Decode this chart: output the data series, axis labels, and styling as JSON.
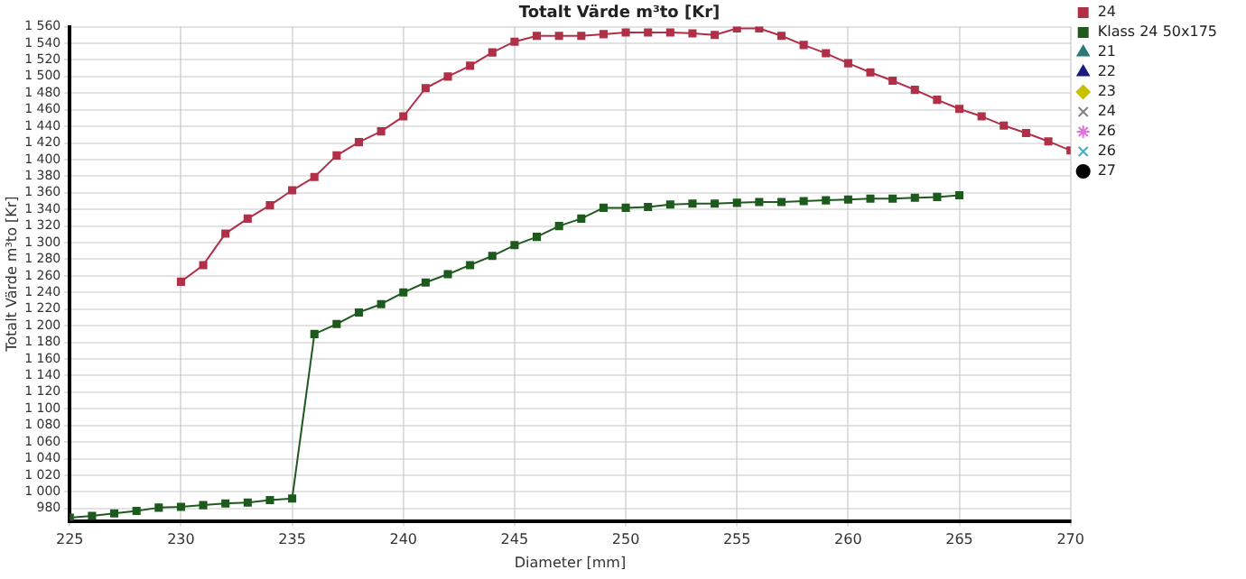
{
  "chart_data": {
    "type": "line",
    "title": "Totalt Värde m³to [Kr]",
    "xlabel": "Diameter [mm]",
    "ylabel": "Totalt Värde m³to [Kr]",
    "xlim": [
      225,
      270
    ],
    "xticks": [
      225,
      230,
      235,
      240,
      245,
      250,
      255,
      260,
      265,
      270
    ],
    "ylim": [
      965,
      1560
    ],
    "yticks": [
      980,
      {
        "value": 1000,
        "label": "1 000"
      },
      {
        "value": 1020,
        "label": "1 020"
      },
      {
        "value": 1040,
        "label": "1 040"
      },
      {
        "value": 1060,
        "label": "1 060"
      },
      {
        "value": 1080,
        "label": "1 080"
      },
      {
        "value": 1100,
        "label": "1 100"
      },
      {
        "value": 1120,
        "label": "1 120"
      },
      {
        "value": 1140,
        "label": "1 140"
      },
      {
        "value": 1160,
        "label": "1 160"
      },
      {
        "value": 1180,
        "label": "1 180"
      },
      {
        "value": 1200,
        "label": "1 200"
      },
      {
        "value": 1220,
        "label": "1 220"
      },
      {
        "value": 1240,
        "label": "1 240"
      },
      {
        "value": 1260,
        "label": "1 260"
      },
      {
        "value": 1280,
        "label": "1 280"
      },
      {
        "value": 1300,
        "label": "1 300"
      },
      {
        "value": 1320,
        "label": "1 320"
      },
      {
        "value": 1340,
        "label": "1 340"
      },
      {
        "value": 1360,
        "label": "1 360"
      },
      {
        "value": 1380,
        "label": "1 380"
      },
      {
        "value": 1400,
        "label": "1 400"
      },
      {
        "value": 1420,
        "label": "1 420"
      },
      {
        "value": 1440,
        "label": "1 440"
      },
      {
        "value": 1460,
        "label": "1 460"
      },
      {
        "value": 1480,
        "label": "1 480"
      },
      {
        "value": 1500,
        "label": "1 500"
      },
      {
        "value": 1520,
        "label": "1 520"
      },
      {
        "value": 1540,
        "label": "1 540"
      },
      {
        "value": 1560,
        "label": "1 560"
      }
    ],
    "grid": true,
    "legend": "right",
    "line_style": "solid",
    "series": [
      {
        "name": "24",
        "color": "#b03048",
        "marker": "square",
        "x": [
          230,
          231,
          232,
          233,
          234,
          235,
          236,
          237,
          238,
          239,
          240,
          241,
          242,
          243,
          244,
          245,
          246,
          247,
          248,
          249,
          250,
          251,
          252,
          253,
          254,
          255,
          256,
          257,
          258,
          259,
          260,
          261,
          262,
          263,
          264,
          265,
          266,
          267,
          268,
          269,
          270
        ],
        "values": [
          1253,
          1273,
          1311,
          1329,
          1345,
          1363,
          1379,
          1405,
          1421,
          1434,
          1452,
          1486,
          1500,
          1513,
          1529,
          1542,
          1549,
          1549,
          1549,
          1551,
          1553,
          1553,
          1553,
          1552,
          1550,
          1558,
          1558,
          1549,
          1538,
          1528,
          1516,
          1505,
          1495,
          1484,
          1472,
          1461,
          1452,
          1441,
          1432,
          1422,
          1411
        ]
      },
      {
        "name": "Klass 24 50x175",
        "color": "#1e5a1e",
        "marker": "square",
        "x": [
          225,
          226,
          227,
          228,
          229,
          230,
          231,
          232,
          233,
          234,
          235,
          236,
          237,
          238,
          239,
          240,
          241,
          242,
          243,
          244,
          245,
          246,
          247,
          248,
          249,
          250,
          251,
          252,
          253,
          254,
          255,
          256,
          257,
          258,
          259,
          260,
          261,
          262,
          263,
          264,
          265
        ],
        "values": [
          969,
          971,
          974,
          977,
          981,
          982,
          984,
          986,
          987,
          990,
          992,
          1190,
          1202,
          1216,
          1226,
          1240,
          1252,
          1262,
          1273,
          1284,
          1297,
          1307,
          1320,
          1329,
          1342,
          1342,
          1343,
          1346,
          1347,
          1347,
          1348,
          1349,
          1349,
          1350,
          1351,
          1352,
          1353,
          1353,
          1354,
          1355,
          1357
        ]
      },
      {
        "name": "21",
        "color": "#2a7a7a",
        "marker": "triangle"
      },
      {
        "name": "22",
        "color": "#1a1a80",
        "marker": "triangle"
      },
      {
        "name": "23",
        "color": "#c8c000",
        "marker": "diamond"
      },
      {
        "name": "24",
        "color": "#808080",
        "marker": "cross"
      },
      {
        "name": "26",
        "color": "#e070e0",
        "marker": "star"
      },
      {
        "name": "26",
        "color": "#40b0c0",
        "marker": "cross"
      },
      {
        "name": "27",
        "color": "#000000",
        "marker": "circle"
      }
    ]
  }
}
